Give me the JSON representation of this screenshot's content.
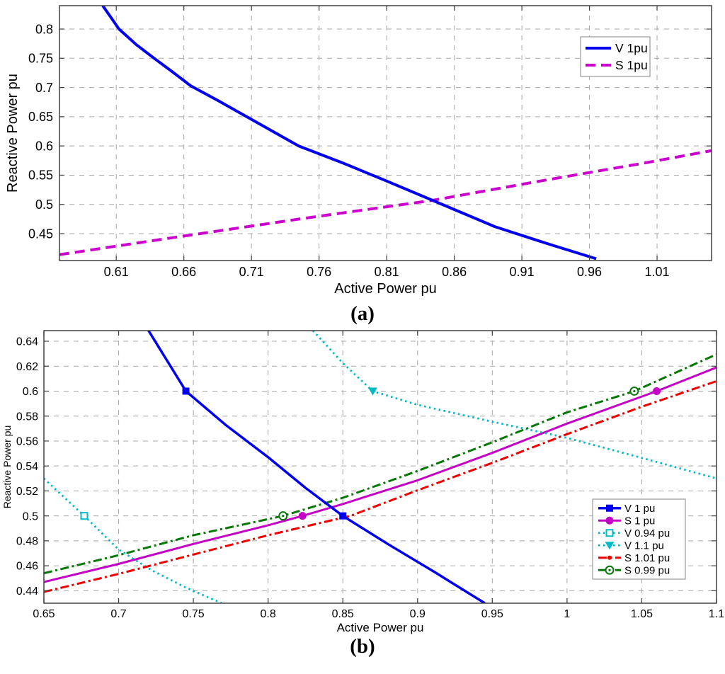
{
  "page": {
    "background": "#ffffff"
  },
  "chart_data": [
    {
      "id": "a",
      "type": "line",
      "panel_label": "(a)",
      "xlabel": "Active Power pu",
      "ylabel": "Reactive Power pu",
      "xlim": [
        0.568,
        1.0503
      ],
      "ylim": [
        0.404,
        0.84
      ],
      "grid": "dashed",
      "grid_color": "#a8a8a8",
      "box_color": "#404040",
      "legend": {
        "position": "upper-right"
      },
      "xticks": [
        {
          "v": 0.61,
          "label": "0.61"
        },
        {
          "v": 0.66,
          "label": "0.66"
        },
        {
          "v": 0.71,
          "label": "0.71"
        },
        {
          "v": 0.76,
          "label": "0.76"
        },
        {
          "v": 0.81,
          "label": "0.81"
        },
        {
          "v": 0.86,
          "label": "0.86"
        },
        {
          "v": 0.91,
          "label": "0.91"
        },
        {
          "v": 0.96,
          "label": "0.96"
        },
        {
          "v": 1.01,
          "label": "1.01"
        }
      ],
      "yticks": [
        {
          "v": 0.45,
          "label": "0.45"
        },
        {
          "v": 0.5,
          "label": "0.5"
        },
        {
          "v": 0.55,
          "label": "0.55"
        },
        {
          "v": 0.6,
          "label": "0.6"
        },
        {
          "v": 0.65,
          "label": "0.65"
        },
        {
          "v": 0.7,
          "label": "0.7"
        },
        {
          "v": 0.75,
          "label": "0.75"
        },
        {
          "v": 0.8,
          "label": "0.8"
        }
      ],
      "series": [
        {
          "name": "V 1pu",
          "color": "#0000EE",
          "style": "solid",
          "width": 4,
          "marker": "none",
          "marker_points": [],
          "points": [
            [
              0.6,
              0.84
            ],
            [
              0.606,
              0.82
            ],
            [
              0.612,
              0.8
            ],
            [
              0.625,
              0.773
            ],
            [
              0.638,
              0.75
            ],
            [
              0.652,
              0.726
            ],
            [
              0.665,
              0.703
            ],
            [
              0.685,
              0.678
            ],
            [
              0.705,
              0.652
            ],
            [
              0.725,
              0.626
            ],
            [
              0.745,
              0.6
            ],
            [
              0.778,
              0.5705
            ],
            [
              0.81,
              0.54
            ],
            [
              0.844,
              0.507
            ],
            [
              0.868,
              0.4835
            ],
            [
              0.89,
              0.462
            ],
            [
              0.928,
              0.4335
            ],
            [
              0.965,
              0.407
            ]
          ]
        },
        {
          "name": "S 1pu",
          "color": "#CC00CC",
          "style": "dashed",
          "width": 4,
          "marker": "none",
          "marker_points": [],
          "points": [
            [
              0.568,
              0.414
            ],
            [
              0.65,
              0.4425
            ],
            [
              0.75,
              0.4765
            ],
            [
              0.844,
              0.507
            ],
            [
              0.92,
              0.5385
            ],
            [
              1.0,
              0.5705
            ],
            [
              1.0503,
              0.592
            ]
          ]
        }
      ]
    },
    {
      "id": "b",
      "type": "line",
      "panel_label": "(b)",
      "xlabel": "Active Power pu",
      "ylabel": "Reactive Power pu",
      "xlim": [
        0.65,
        1.1
      ],
      "ylim": [
        0.43,
        0.6485
      ],
      "grid": "dashed",
      "grid_color": "#a8a8a8",
      "box_color": "#404040",
      "legend": {
        "position": "lower-right-inset"
      },
      "xticks": [
        {
          "v": 0.65,
          "label": "0.65"
        },
        {
          "v": 0.7,
          "label": "0.7"
        },
        {
          "v": 0.75,
          "label": "0.75"
        },
        {
          "v": 0.8,
          "label": "0.8"
        },
        {
          "v": 0.85,
          "label": "0.85"
        },
        {
          "v": 0.9,
          "label": "0.9"
        },
        {
          "v": 0.95,
          "label": "0.95"
        },
        {
          "v": 1.0,
          "label": "1"
        },
        {
          "v": 1.05,
          "label": "1.05"
        },
        {
          "v": 1.1,
          "label": "1.1"
        }
      ],
      "yticks": [
        {
          "v": 0.44,
          "label": "0.44"
        },
        {
          "v": 0.46,
          "label": "0.46"
        },
        {
          "v": 0.48,
          "label": "0.48"
        },
        {
          "v": 0.5,
          "label": "0.5"
        },
        {
          "v": 0.52,
          "label": "0.52"
        },
        {
          "v": 0.54,
          "label": "0.54"
        },
        {
          "v": 0.56,
          "label": "0.56"
        },
        {
          "v": 0.58,
          "label": "0.58"
        },
        {
          "v": 0.6,
          "label": "0.6"
        },
        {
          "v": 0.62,
          "label": "0.62"
        },
        {
          "v": 0.64,
          "label": "0.64"
        }
      ],
      "series": [
        {
          "name": "V 1 pu",
          "color": "#0000EE",
          "style": "solid",
          "width": 3.5,
          "marker": "square",
          "marker_points": [
            [
              0.745,
              0.6
            ],
            [
              0.85,
              0.5
            ]
          ],
          "points": [
            [
              0.72,
              0.6485
            ],
            [
              0.745,
              0.6
            ],
            [
              0.772,
              0.5725
            ],
            [
              0.8,
              0.547
            ],
            [
              0.825,
              0.5225
            ],
            [
              0.85,
              0.5
            ],
            [
              0.88,
              0.4775
            ],
            [
              0.912,
              0.4545
            ],
            [
              0.945,
              0.43
            ]
          ]
        },
        {
          "name": "S 1 pu",
          "color": "#C400C4",
          "style": "solid",
          "width": 3,
          "marker": "circle",
          "marker_points": [
            [
              0.823,
              0.5
            ],
            [
              1.06,
              0.6
            ]
          ],
          "points": [
            [
              0.65,
              0.447
            ],
            [
              0.7,
              0.4615
            ],
            [
              0.75,
              0.4775
            ],
            [
              0.8,
              0.4925
            ],
            [
              0.823,
              0.5
            ],
            [
              0.85,
              0.5095
            ],
            [
              0.9,
              0.5285
            ],
            [
              0.95,
              0.5505
            ],
            [
              1.0,
              0.574
            ],
            [
              1.06,
              0.6
            ],
            [
              1.1,
              0.619
            ]
          ]
        },
        {
          "name": "V 0.94 pu",
          "color": "#00B9C6",
          "style": "dotted",
          "width": 2.8,
          "marker": "square-open",
          "marker_points": [
            [
              0.677,
              0.5
            ]
          ],
          "points": [
            [
              0.65,
              0.53
            ],
            [
              0.677,
              0.5
            ],
            [
              0.7,
              0.473
            ],
            [
              0.722,
              0.4565
            ],
            [
              0.745,
              0.4425
            ],
            [
              0.769,
              0.43
            ]
          ]
        },
        {
          "name": "V 1.1 pu",
          "color": "#00B9C6",
          "style": "dotted",
          "width": 2.8,
          "marker": "triangle-down",
          "marker_points": [
            [
              0.87,
              0.6
            ]
          ],
          "points": [
            [
              0.83,
              0.6485
            ],
            [
              0.85,
              0.6225
            ],
            [
              0.87,
              0.6
            ],
            [
              0.9,
              0.589
            ],
            [
              0.95,
              0.5755
            ],
            [
              1.0,
              0.5625
            ],
            [
              1.05,
              0.5465
            ],
            [
              1.1,
              0.53
            ]
          ]
        },
        {
          "name": "S 1.01 pu",
          "color": "#EE0000",
          "style": "dashdot",
          "width": 3,
          "marker": "dot",
          "marker_points": [],
          "points": [
            [
              0.65,
              0.439
            ],
            [
              0.7,
              0.4535
            ],
            [
              0.75,
              0.469
            ],
            [
              0.8,
              0.4845
            ],
            [
              0.855,
              0.5
            ],
            [
              0.9,
              0.5205
            ],
            [
              0.95,
              0.5425
            ],
            [
              1.0,
              0.5655
            ],
            [
              1.05,
              0.5875
            ],
            [
              1.1,
              0.608
            ]
          ]
        },
        {
          "name": "S 0.99 pu",
          "color": "#067806",
          "style": "dashdot",
          "width": 3,
          "marker": "circle-open-dot",
          "marker_points": [
            [
              0.81,
              0.5
            ],
            [
              1.045,
              0.6
            ]
          ],
          "points": [
            [
              0.65,
              0.454
            ],
            [
              0.7,
              0.4685
            ],
            [
              0.75,
              0.4845
            ],
            [
              0.81,
              0.5
            ],
            [
              0.85,
              0.5145
            ],
            [
              0.9,
              0.536
            ],
            [
              0.95,
              0.559
            ],
            [
              1.0,
              0.583
            ],
            [
              1.045,
              0.6
            ],
            [
              1.1,
              0.6295
            ]
          ]
        }
      ]
    }
  ]
}
